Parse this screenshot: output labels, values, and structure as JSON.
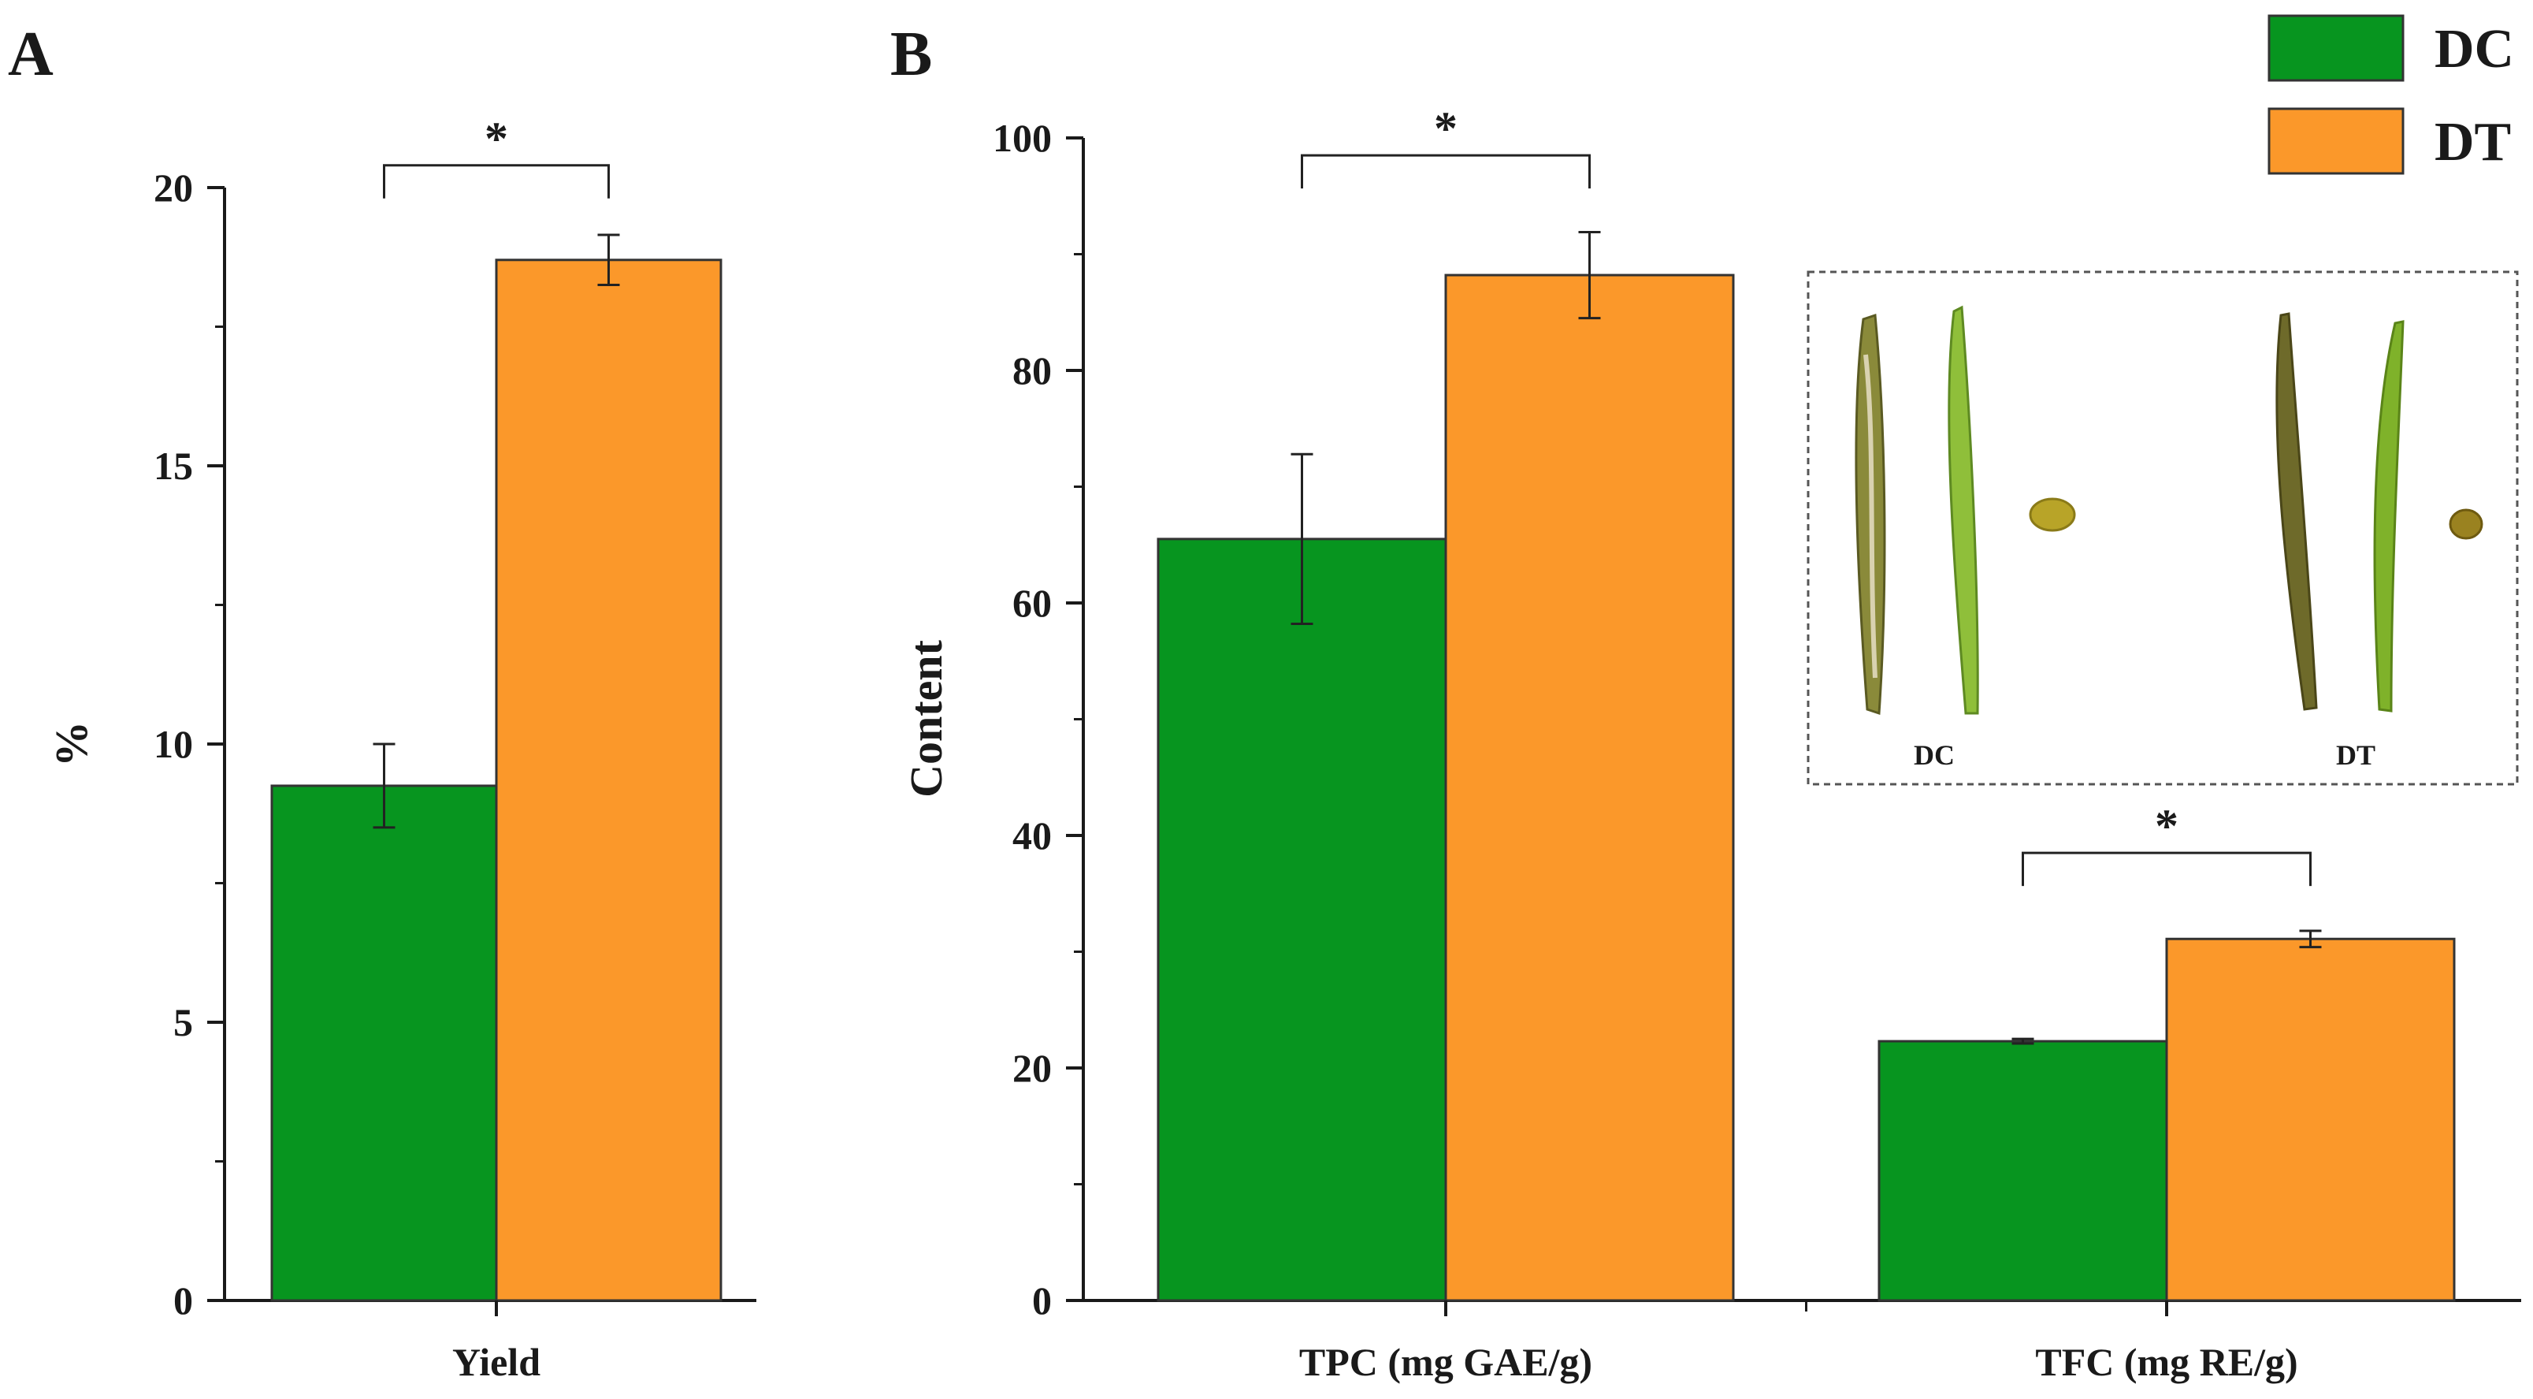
{
  "colors": {
    "DC": "#07951f",
    "DT": "#fb982a",
    "axis": "#1a1a1a"
  },
  "legend": [
    {
      "name": "DC",
      "color": "#07951f"
    },
    {
      "name": "DT",
      "color": "#fb982a"
    }
  ],
  "chart_data": [
    {
      "panel": "A",
      "type": "bar",
      "categories": [
        "Yield"
      ],
      "series": [
        {
          "name": "DC",
          "values": [
            9.25
          ],
          "errors": [
            0.75
          ]
        },
        {
          "name": "DT",
          "values": [
            18.7
          ],
          "errors": [
            0.45
          ]
        }
      ],
      "xlabel": "",
      "ylabel": "%",
      "ylim": [
        0,
        20
      ],
      "yticks": [
        "0",
        "5",
        "10",
        "15",
        "20"
      ],
      "significance": [
        {
          "category": "Yield",
          "label": "*",
          "bracket_height": 20.4
        }
      ]
    },
    {
      "panel": "B",
      "type": "bar",
      "categories": [
        "TPC (mg GAE/g)",
        "TFC (mg RE/g)"
      ],
      "series": [
        {
          "name": "DC",
          "values": [
            65.5,
            22.3
          ],
          "errors": [
            7.3,
            0.2
          ]
        },
        {
          "name": "DT",
          "values": [
            88.2,
            31.1
          ],
          "errors": [
            3.7,
            0.7
          ]
        }
      ],
      "xlabel": "",
      "ylabel": "Content",
      "ylim": [
        0,
        100
      ],
      "yticks": [
        "0",
        "20",
        "40",
        "60",
        "80",
        "100"
      ],
      "significance": [
        {
          "category": "TPC (mg GAE/g)",
          "label": "*",
          "bracket_height": 98.5
        },
        {
          "category": "TFC (mg RE/g)",
          "label": "*",
          "bracket_height": 38.5
        }
      ],
      "inset": {
        "labels": [
          "DC",
          "DT"
        ]
      }
    }
  ]
}
